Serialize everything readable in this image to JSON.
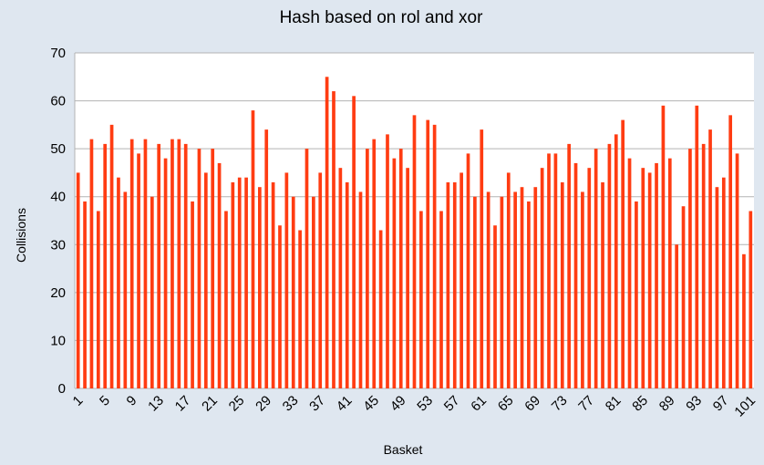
{
  "chart_data": {
    "type": "bar",
    "title": "Hash based on rol and xor",
    "xlabel": "Basket",
    "ylabel": "Collisions",
    "ylim": [
      0,
      70
    ],
    "yticks": [
      0,
      10,
      20,
      30,
      40,
      50,
      60,
      70
    ],
    "grid": true,
    "legend": "none",
    "bar_color": "#ff3c12",
    "background_color": "#dfe7f0",
    "plot_background_color": "#ffffff",
    "grid_color": "#b3b3b3",
    "categories": [
      1,
      2,
      3,
      4,
      5,
      6,
      7,
      8,
      9,
      10,
      11,
      12,
      13,
      14,
      15,
      16,
      17,
      18,
      19,
      20,
      21,
      22,
      23,
      24,
      25,
      26,
      27,
      28,
      29,
      30,
      31,
      32,
      33,
      34,
      35,
      36,
      37,
      38,
      39,
      40,
      41,
      42,
      43,
      44,
      45,
      46,
      47,
      48,
      49,
      50,
      51,
      52,
      53,
      54,
      55,
      56,
      57,
      58,
      59,
      60,
      61,
      62,
      63,
      64,
      65,
      66,
      67,
      68,
      69,
      70,
      71,
      72,
      73,
      74,
      75,
      76,
      77,
      78,
      79,
      80,
      81,
      82,
      83,
      84,
      85,
      86,
      87,
      88,
      89,
      90,
      91,
      92,
      93,
      94,
      95,
      96,
      97,
      98,
      99,
      100,
      101
    ],
    "x_tick_labels": [
      "1",
      "5",
      "9",
      "13",
      "17",
      "21",
      "25",
      "29",
      "33",
      "37",
      "41",
      "45",
      "49",
      "53",
      "57",
      "61",
      "65",
      "69",
      "73",
      "77",
      "81",
      "85",
      "89",
      "93",
      "97",
      "101"
    ],
    "values": [
      45,
      39,
      52,
      37,
      51,
      55,
      44,
      41,
      52,
      49,
      52,
      40,
      51,
      48,
      52,
      52,
      51,
      39,
      50,
      45,
      50,
      47,
      37,
      43,
      44,
      44,
      58,
      42,
      54,
      43,
      34,
      45,
      40,
      33,
      50,
      40,
      45,
      65,
      62,
      46,
      43,
      61,
      41,
      50,
      52,
      33,
      53,
      48,
      50,
      46,
      57,
      37,
      56,
      55,
      37,
      43,
      43,
      45,
      49,
      40,
      54,
      41,
      34,
      40,
      45,
      41,
      42,
      39,
      42,
      46,
      49,
      49,
      43,
      51,
      47,
      41,
      46,
      50,
      43,
      51,
      53,
      56,
      48,
      39,
      46,
      45,
      47,
      59,
      48,
      30,
      38,
      50,
      59,
      51,
      54,
      42,
      44,
      57,
      49,
      28,
      37
    ]
  }
}
